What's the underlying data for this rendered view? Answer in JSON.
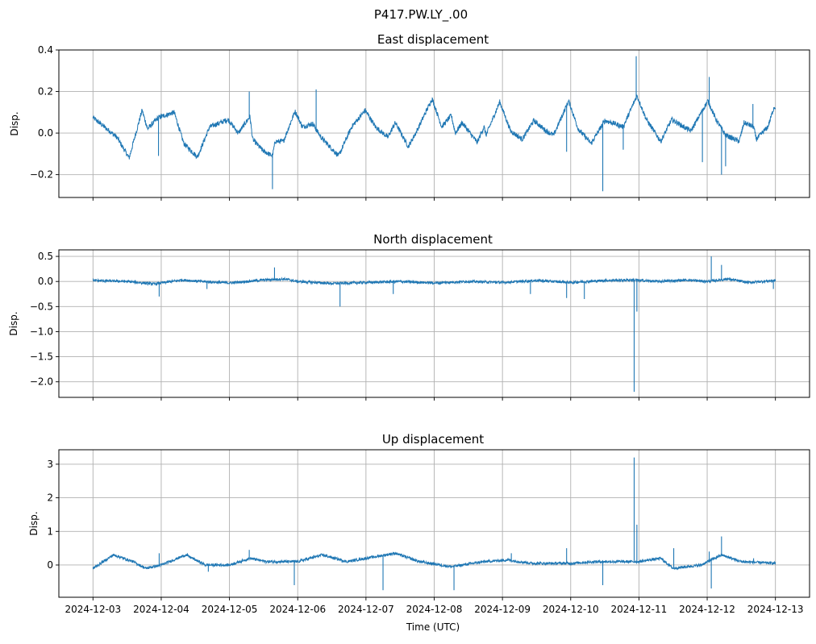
{
  "figure_title": "P417.PW.LY_.00",
  "x_origin": "2024-12-03",
  "xlabel": "Time (UTC)",
  "xlim_days": [
    -0.5,
    10.5
  ],
  "xtick_days": [
    0,
    1,
    2,
    3,
    4,
    5,
    6,
    7,
    8,
    9,
    10
  ],
  "xtick_labels": [
    "2024-12-03",
    "2024-12-04",
    "2024-12-05",
    "2024-12-06",
    "2024-12-07",
    "2024-12-08",
    "2024-12-09",
    "2024-12-10",
    "2024-12-11",
    "2024-12-12",
    "2024-12-13"
  ],
  "line_color": "#1f77b4",
  "grid_color": "#b0b0b0",
  "chart_data": [
    {
      "type": "line",
      "title": "East displacement",
      "ylabel": "Disp.",
      "ylim": [
        -0.31,
        0.4
      ],
      "yticks": [
        -0.2,
        0.0,
        0.2,
        0.4
      ],
      "ytick_labels": [
        "−0.2",
        "0.0",
        "0.2",
        "0.4"
      ],
      "grid": true,
      "noise": 0.012,
      "x_days": [
        0,
        0.35,
        0.53,
        0.72,
        0.8,
        0.96,
        1.19,
        1.33,
        1.53,
        1.71,
        1.98,
        2.13,
        2.3,
        2.34,
        2.49,
        2.63,
        2.67,
        2.79,
        2.96,
        3.07,
        3.22,
        3.34,
        3.6,
        3.79,
        3.99,
        4.14,
        4.32,
        4.43,
        4.62,
        4.73,
        4.97,
        5.11,
        5.25,
        5.31,
        5.41,
        5.63,
        5.73,
        5.76,
        5.96,
        6.12,
        6.29,
        6.46,
        6.64,
        6.75,
        6.97,
        7.11,
        7.3,
        7.5,
        7.65,
        7.77,
        7.97,
        8.11,
        8.32,
        8.48,
        8.76,
        9.01,
        9.13,
        9.27,
        9.47,
        9.54,
        9.68,
        9.72,
        9.89,
        9.98
      ],
      "y": [
        0.075,
        -0.02,
        -0.12,
        0.11,
        0.02,
        0.075,
        0.1,
        -0.05,
        -0.115,
        0.03,
        0.065,
        0.0,
        0.08,
        -0.03,
        -0.085,
        -0.11,
        -0.04,
        -0.04,
        0.105,
        0.03,
        0.045,
        -0.02,
        -0.11,
        0.03,
        0.11,
        0.03,
        -0.02,
        0.05,
        -0.065,
        0.0,
        0.165,
        0.03,
        0.085,
        0.0,
        0.05,
        -0.045,
        0.03,
        -0.01,
        0.15,
        0.01,
        -0.03,
        0.06,
        0.01,
        -0.01,
        0.155,
        0.02,
        -0.05,
        0.06,
        0.045,
        0.03,
        0.18,
        0.065,
        -0.04,
        0.065,
        0.01,
        0.155,
        0.065,
        -0.01,
        -0.04,
        0.05,
        0.03,
        -0.03,
        0.03,
        0.125
      ],
      "spikes": [
        [
          0.96,
          -0.11
        ],
        [
          2.29,
          0.2
        ],
        [
          2.63,
          -0.27
        ],
        [
          3.27,
          0.21
        ],
        [
          6.94,
          -0.09
        ],
        [
          7.47,
          -0.28
        ],
        [
          7.77,
          -0.08
        ],
        [
          7.96,
          0.37
        ],
        [
          8.93,
          -0.14
        ],
        [
          9.03,
          0.27
        ],
        [
          9.21,
          -0.2
        ],
        [
          9.27,
          -0.16
        ],
        [
          9.67,
          0.14
        ]
      ]
    },
    {
      "type": "line",
      "title": "North displacement",
      "ylabel": "Disp.",
      "ylim": [
        -2.31,
        0.63
      ],
      "yticks": [
        -2.0,
        -1.5,
        -1.0,
        -0.5,
        0.0,
        0.5
      ],
      "ytick_labels": [
        "−2.0",
        "−1.5",
        "−1.0",
        "−0.5",
        "0.0",
        "0.5"
      ],
      "grid": true,
      "noise": 0.025,
      "x_days": [
        0,
        0.5,
        0.9,
        1.3,
        1.6,
        2.0,
        2.5,
        2.8,
        3.0,
        3.5,
        4.0,
        4.5,
        5.0,
        5.5,
        6.0,
        6.5,
        7.0,
        7.5,
        7.9,
        8.3,
        8.7,
        9.0,
        9.3,
        9.6,
        10.0
      ],
      "y": [
        0.02,
        0.0,
        -0.05,
        0.03,
        0.0,
        -0.03,
        0.03,
        0.05,
        0.0,
        -0.04,
        -0.02,
        0.0,
        -0.03,
        0.0,
        -0.02,
        0.02,
        -0.02,
        0.02,
        0.03,
        0.0,
        0.03,
        0.0,
        0.05,
        -0.02,
        0.02
      ],
      "spikes": [
        [
          0.97,
          -0.3
        ],
        [
          1.67,
          -0.15
        ],
        [
          2.66,
          0.28
        ],
        [
          3.62,
          -0.5
        ],
        [
          4.4,
          -0.25
        ],
        [
          6.41,
          -0.25
        ],
        [
          6.94,
          -0.33
        ],
        [
          7.2,
          -0.35
        ],
        [
          7.93,
          -2.2
        ],
        [
          7.97,
          -0.6
        ],
        [
          9.06,
          0.5
        ],
        [
          9.21,
          0.33
        ],
        [
          9.97,
          -0.15
        ]
      ]
    },
    {
      "type": "line",
      "title": "Up displacement",
      "ylabel": "Disp.",
      "ylim": [
        -0.96,
        3.43
      ],
      "yticks": [
        0,
        1,
        2,
        3
      ],
      "ytick_labels": [
        "0",
        "1",
        "2",
        "3"
      ],
      "grid": true,
      "noise": 0.04,
      "x_days": [
        0,
        0.3,
        0.59,
        0.77,
        1.0,
        1.36,
        1.65,
        2.0,
        2.3,
        2.54,
        3.0,
        3.36,
        3.72,
        4.0,
        4.43,
        4.78,
        5.25,
        5.73,
        6.08,
        6.43,
        7.0,
        7.38,
        8.0,
        8.32,
        8.5,
        8.91,
        9.21,
        9.5,
        10.0
      ],
      "y": [
        -0.1,
        0.3,
        0.1,
        -0.1,
        0.0,
        0.3,
        0.0,
        0.0,
        0.2,
        0.1,
        0.1,
        0.3,
        0.1,
        0.2,
        0.35,
        0.1,
        -0.05,
        0.1,
        0.15,
        0.05,
        0.05,
        0.1,
        0.1,
        0.2,
        -0.1,
        0.0,
        0.3,
        0.1,
        0.05
      ],
      "spikes": [
        [
          0.97,
          0.35
        ],
        [
          1.69,
          -0.2
        ],
        [
          2.29,
          0.45
        ],
        [
          2.95,
          -0.6
        ],
        [
          4.25,
          -0.75
        ],
        [
          5.29,
          -0.75
        ],
        [
          6.13,
          0.35
        ],
        [
          6.94,
          0.5
        ],
        [
          7.47,
          -0.6
        ],
        [
          7.93,
          3.2
        ],
        [
          7.97,
          1.2
        ],
        [
          8.51,
          0.5
        ],
        [
          9.03,
          0.4
        ],
        [
          9.06,
          -0.7
        ],
        [
          9.21,
          0.85
        ],
        [
          9.68,
          0.2
        ]
      ]
    }
  ]
}
